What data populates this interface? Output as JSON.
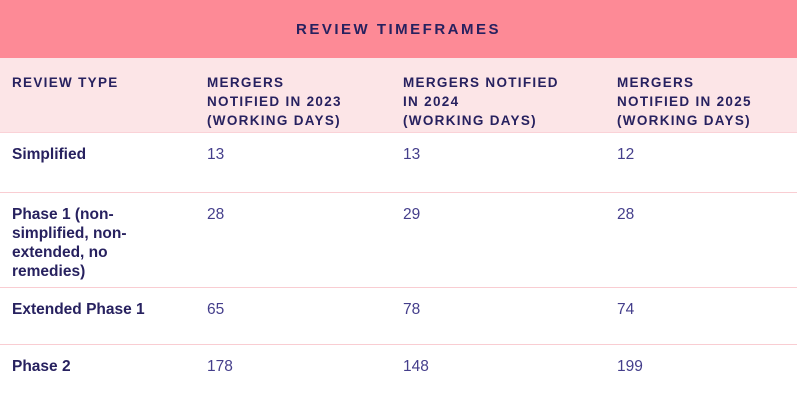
{
  "table": {
    "title": "REVIEW TIMEFRAMES",
    "columns": [
      {
        "label": "REVIEW TYPE"
      },
      {
        "label": "MERGERS\nNOTIFIED IN 2023\n(WORKING DAYS)"
      },
      {
        "label": "MERGERS NOTIFIED\nIN 2024\n(WORKING DAYS)"
      },
      {
        "label": "MERGERS\nNOTIFIED IN 2025\n(WORKING DAYS)"
      }
    ],
    "rows": [
      {
        "label": "Simplified",
        "values": [
          "13",
          "13",
          "12"
        ]
      },
      {
        "label": "Phase 1 (non-simplified, non-extended, no remedies)",
        "values": [
          "28",
          "29",
          "28"
        ]
      },
      {
        "label": "Extended Phase 1",
        "values": [
          "65",
          "78",
          "74"
        ]
      },
      {
        "label": "Phase 2",
        "values": [
          "178",
          "148",
          "199"
        ]
      }
    ],
    "colors": {
      "banner_bg": "#FD8A96",
      "header_bg": "#FCE5E7",
      "divider": "#F9CDD2",
      "heading_text": "#27215F",
      "value_text": "#443E8B"
    }
  },
  "chart_data": {
    "type": "table",
    "title": "REVIEW TIMEFRAMES",
    "columns": [
      "REVIEW TYPE",
      "MERGERS NOTIFIED IN 2023 (WORKING DAYS)",
      "MERGERS NOTIFIED IN 2024 (WORKING DAYS)",
      "MERGERS NOTIFIED IN 2025 (WORKING DAYS)"
    ],
    "rows": [
      [
        "Simplified",
        13,
        13,
        12
      ],
      [
        "Phase 1 (non-simplified, non-extended, no remedies)",
        28,
        29,
        28
      ],
      [
        "Extended Phase 1",
        65,
        78,
        74
      ],
      [
        "Phase 2",
        178,
        148,
        199
      ]
    ]
  }
}
